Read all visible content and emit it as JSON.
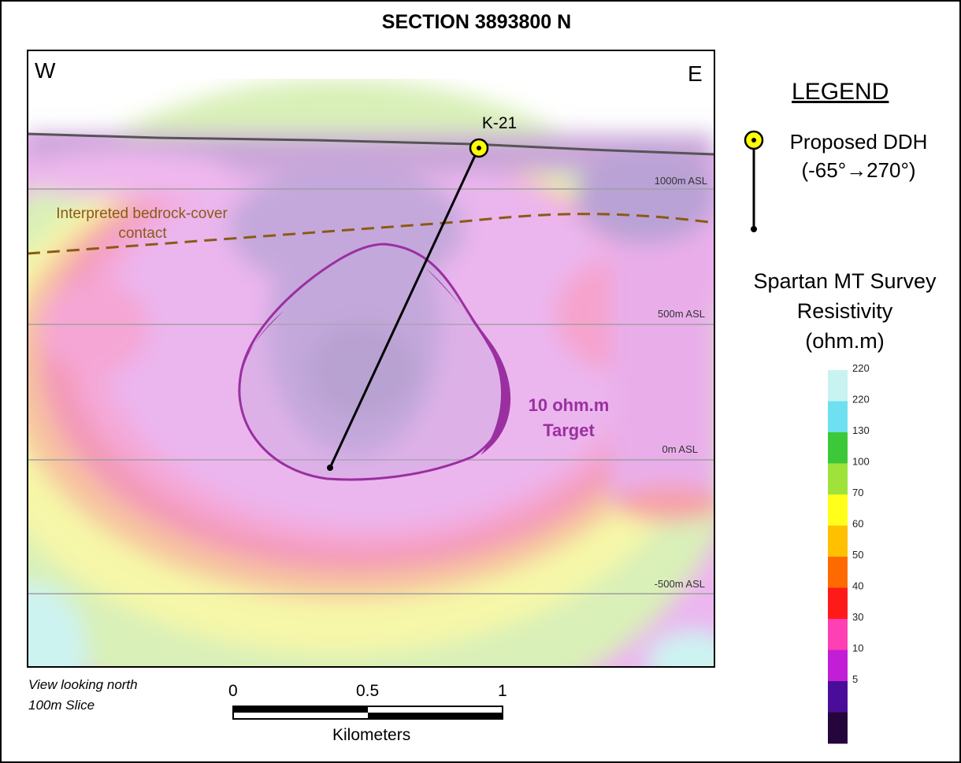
{
  "title": "SECTION 3893800 N",
  "directions": {
    "west": "W",
    "east": "E"
  },
  "drillhole": {
    "name": "K-21",
    "collar_color": "#ffff00"
  },
  "elevation_labels": [
    "1000m ASL",
    "500m ASL",
    "0m ASL",
    "-500m ASL"
  ],
  "contact_label": [
    "Interpreted bedrock-cover",
    "contact"
  ],
  "target_label": [
    "10 ohm.m",
    "Target"
  ],
  "target_color": "#9b2fa0",
  "contact_color": "#8b5a14",
  "legend": {
    "title": "LEGEND",
    "ddh": [
      "Proposed DDH",
      "(-65°→270°)"
    ],
    "survey": [
      "Spartan MT Survey",
      "Resistivity",
      "(ohm.m)"
    ],
    "scale": [
      {
        "label": "220",
        "color": "#c8f3f0"
      },
      {
        "label": "220",
        "color": "#6fe0ef"
      },
      {
        "label": "130",
        "color": "#3dc83a"
      },
      {
        "label": "100",
        "color": "#9fe33a"
      },
      {
        "label": "70",
        "color": "#ffff1a"
      },
      {
        "label": "60",
        "color": "#ffc000"
      },
      {
        "label": "50",
        "color": "#ff6a00"
      },
      {
        "label": "40",
        "color": "#ff1a1a"
      },
      {
        "label": "30",
        "color": "#ff3fb4"
      },
      {
        "label": "10",
        "color": "#c21ed6"
      },
      {
        "label": "5",
        "color": "#4a0d99"
      },
      {
        "label": "",
        "color": "#24063d"
      }
    ]
  },
  "footer": {
    "view_note": [
      "View looking north",
      "100m Slice"
    ],
    "km_ticks": [
      "0",
      "0.5",
      "1"
    ],
    "km_unit": "Kilometers"
  }
}
